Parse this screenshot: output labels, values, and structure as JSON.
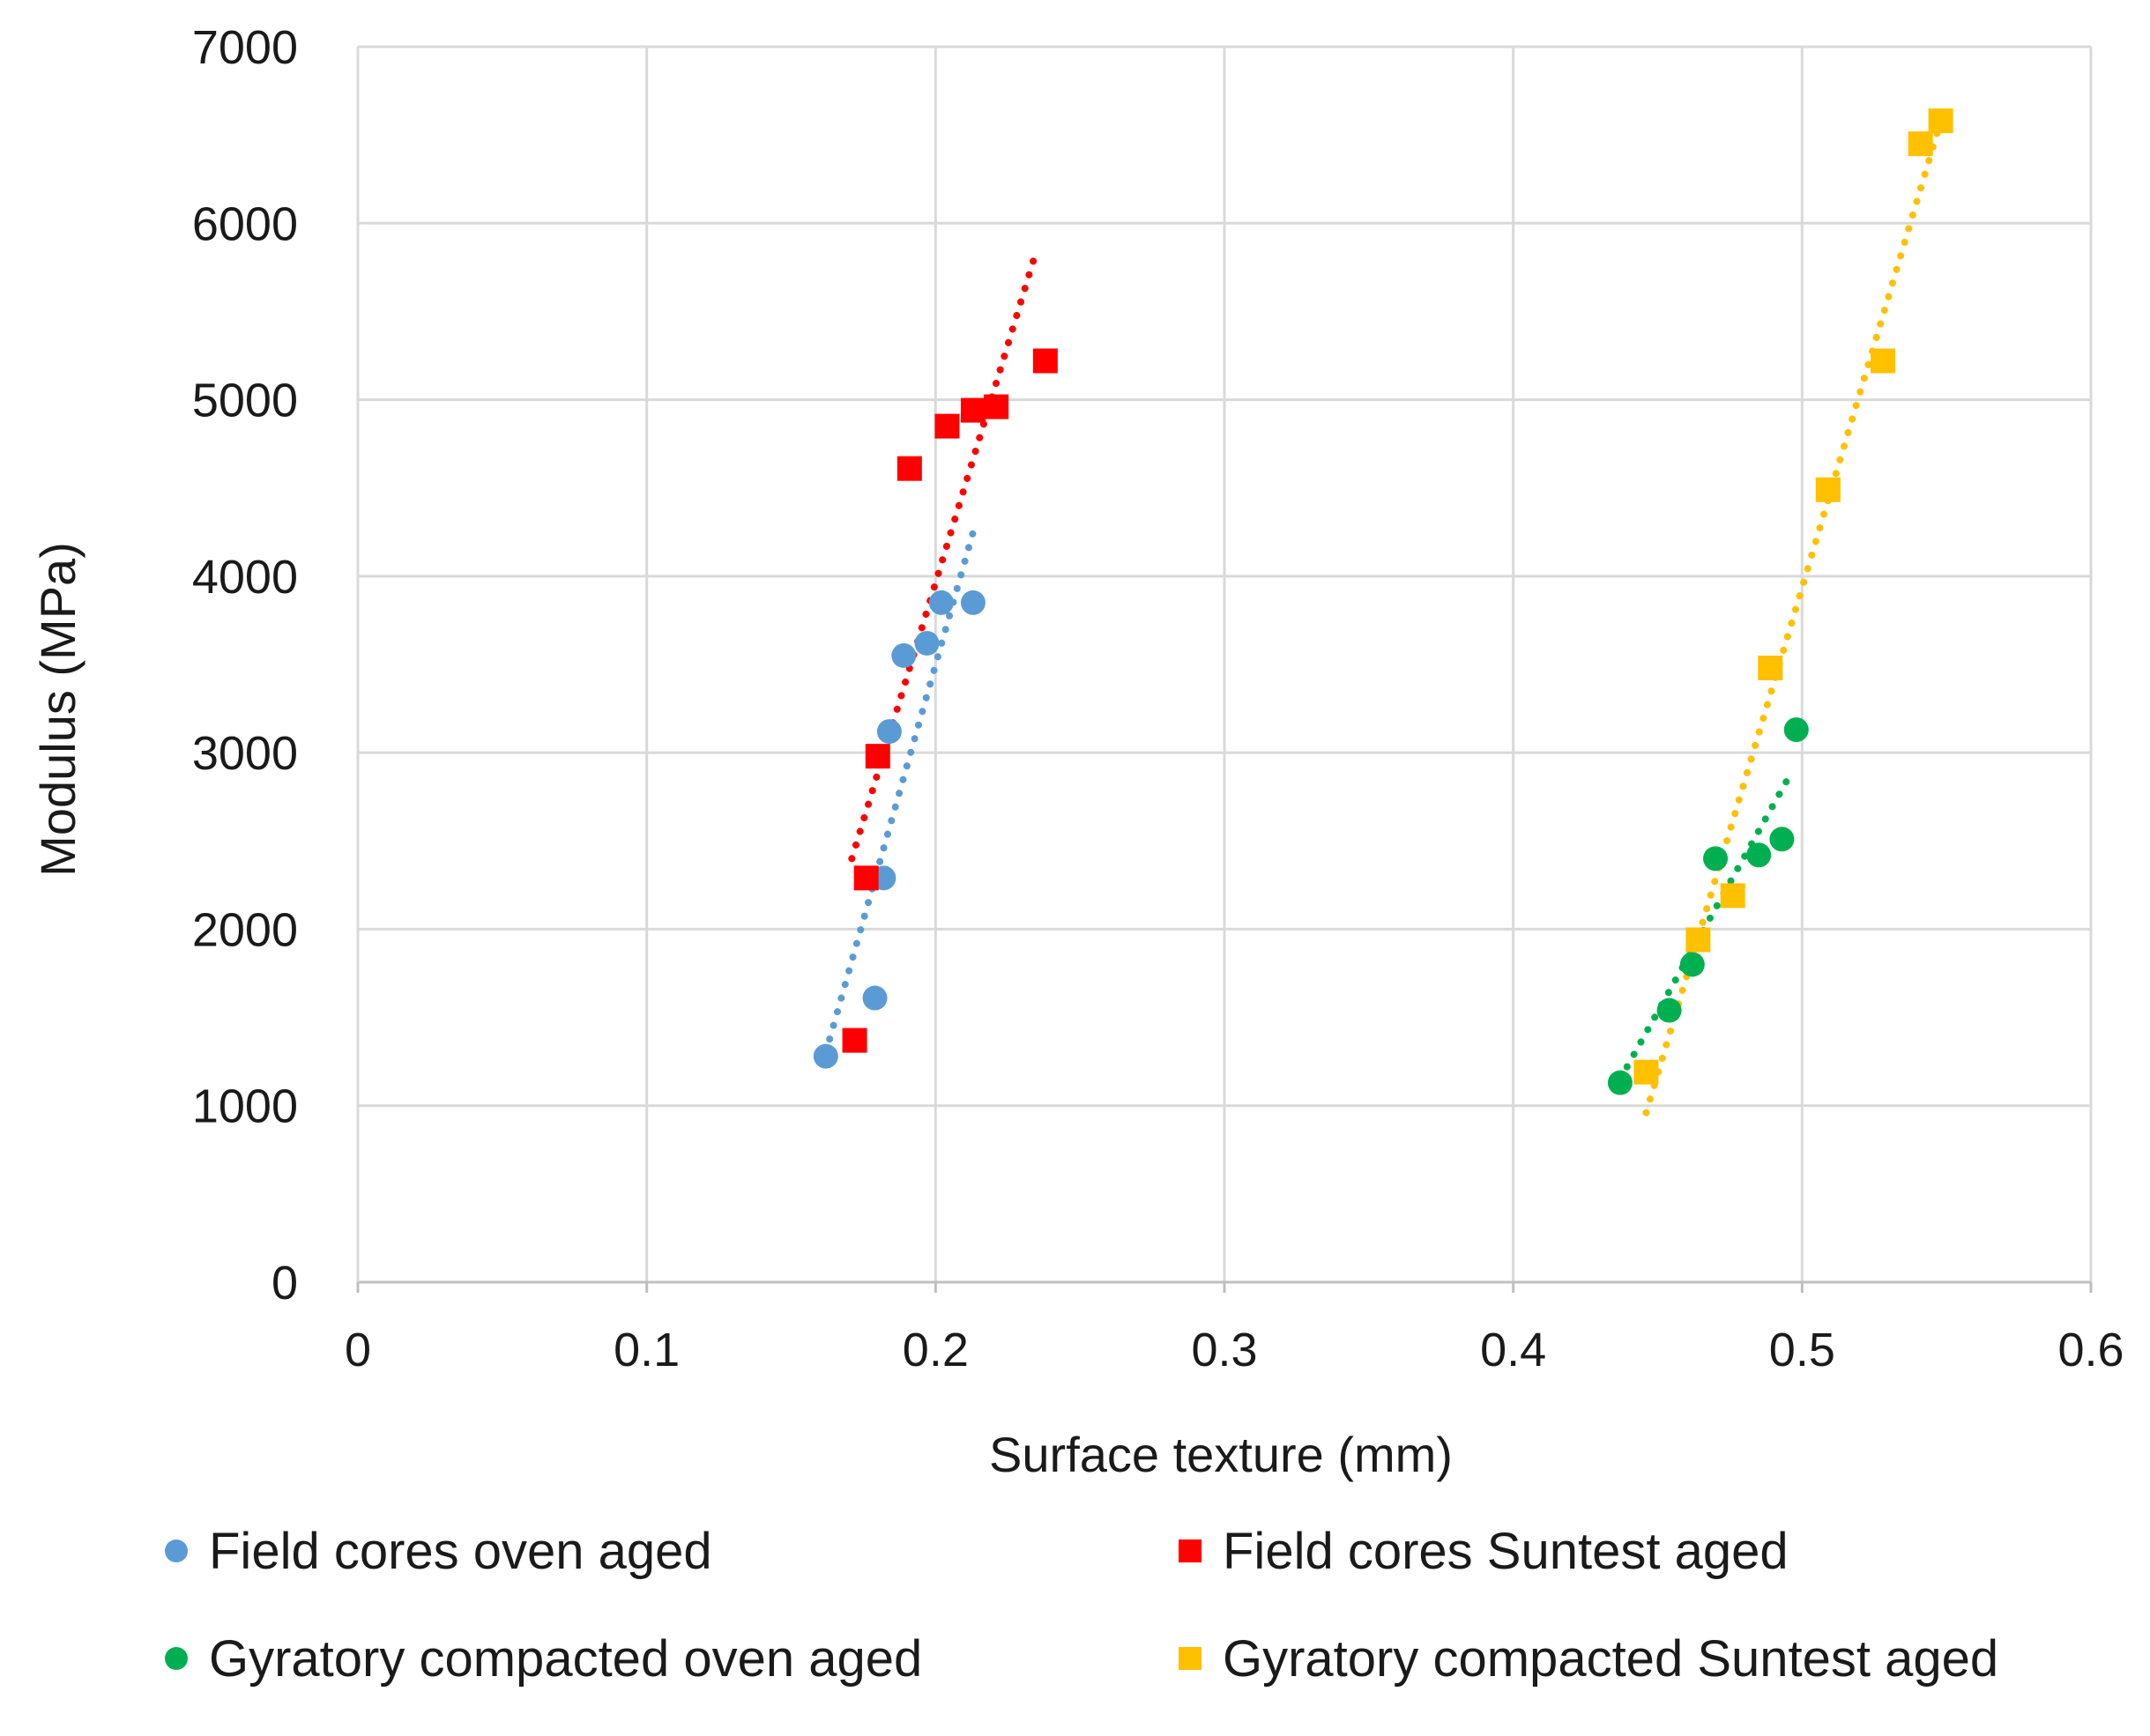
{
  "chart_data": {
    "type": "scatter",
    "title": "",
    "xlabel": "Surface texture (mm)",
    "ylabel": "Modulus (MPa)",
    "xlim": [
      0,
      0.6
    ],
    "ylim": [
      0,
      7000
    ],
    "x_ticks": [
      0,
      0.1,
      0.2,
      0.3,
      0.4,
      0.5,
      0.6
    ],
    "x_tick_labels": [
      "0",
      "0.1",
      "0.2",
      "0.3",
      "0.4",
      "0.5",
      "0.6"
    ],
    "y_ticks": [
      0,
      1000,
      2000,
      3000,
      4000,
      5000,
      6000,
      7000
    ],
    "y_tick_labels": [
      "0",
      "1000",
      "2000",
      "3000",
      "4000",
      "5000",
      "6000",
      "7000"
    ],
    "grid": true,
    "legend_position": "bottom",
    "series": [
      {
        "name": "Field cores oven aged",
        "color": "#5b9bd5",
        "marker": "circle",
        "x": [
          0.162,
          0.179,
          0.182,
          0.184,
          0.189,
          0.197,
          0.202,
          0.213
        ],
        "y": [
          1280,
          1610,
          2290,
          3120,
          3550,
          3620,
          3850,
          3850
        ],
        "trendline": {
          "x": [
            0.162,
            0.213
          ],
          "y": [
            1300,
            4250
          ]
        }
      },
      {
        "name": "Field cores Suntest aged",
        "color": "#ff0000",
        "marker": "square",
        "x": [
          0.172,
          0.176,
          0.18,
          0.191,
          0.204,
          0.213,
          0.221,
          0.238
        ],
        "y": [
          1370,
          2290,
          2980,
          4610,
          4850,
          4940,
          4960,
          5220
        ],
        "trendline": {
          "x": [
            0.171,
            0.235
          ],
          "y": [
            2400,
            5850
          ]
        }
      },
      {
        "name": "Gyratory compacted oven aged",
        "color": "#00b050",
        "marker": "circle",
        "x": [
          0.437,
          0.454,
          0.462,
          0.47,
          0.485,
          0.493,
          0.498
        ],
        "y": [
          1130,
          1540,
          1800,
          2400,
          2420,
          2510,
          3130
        ],
        "trendline": {
          "x": [
            0.437,
            0.495
          ],
          "y": [
            1150,
            2850
          ]
        }
      },
      {
        "name": "Gyratory compacted Suntest aged",
        "color": "#ffc000",
        "marker": "square",
        "x": [
          0.446,
          0.464,
          0.476,
          0.489,
          0.509,
          0.528,
          0.541,
          0.548
        ],
        "y": [
          1190,
          1940,
          2190,
          3480,
          4490,
          5220,
          6450,
          6580
        ],
        "trendline": {
          "x": [
            0.446,
            0.548
          ],
          "y": [
            960,
            6580
          ]
        }
      }
    ]
  }
}
